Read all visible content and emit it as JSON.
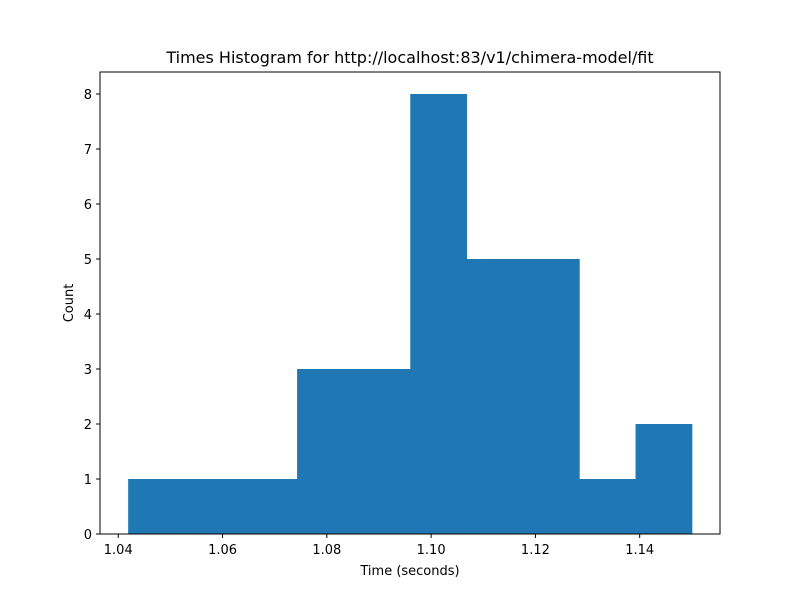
{
  "chart_data": {
    "type": "bar",
    "title": "Times Histogram for http://localhost:83/v1/chimera-model/fit",
    "xlabel": "Time (seconds)",
    "ylabel": "Count",
    "xlim": [
      1.0365,
      1.1554
    ],
    "ylim": [
      0,
      8.4
    ],
    "bar_color": "#1f77b4",
    "bins": [
      {
        "x0": 1.0419,
        "x1": 1.0527,
        "count": 1
      },
      {
        "x0": 1.0527,
        "x1": 1.0635,
        "count": 1
      },
      {
        "x0": 1.0635,
        "x1": 1.0743,
        "count": 1
      },
      {
        "x0": 1.0743,
        "x1": 1.0851,
        "count": 3
      },
      {
        "x0": 1.0851,
        "x1": 1.096,
        "count": 3
      },
      {
        "x0": 1.096,
        "x1": 1.1068,
        "count": 8
      },
      {
        "x0": 1.1068,
        "x1": 1.1176,
        "count": 5
      },
      {
        "x0": 1.1176,
        "x1": 1.1284,
        "count": 5
      },
      {
        "x0": 1.1284,
        "x1": 1.1392,
        "count": 1
      },
      {
        "x0": 1.1392,
        "x1": 1.15,
        "count": 2
      }
    ],
    "x_ticks": [
      {
        "value": 1.04,
        "label": "1.04"
      },
      {
        "value": 1.06,
        "label": "1.06"
      },
      {
        "value": 1.08,
        "label": "1.08"
      },
      {
        "value": 1.1,
        "label": "1.10"
      },
      {
        "value": 1.12,
        "label": "1.12"
      },
      {
        "value": 1.14,
        "label": "1.14"
      }
    ],
    "y_ticks": [
      {
        "value": 0,
        "label": "0"
      },
      {
        "value": 1,
        "label": "1"
      },
      {
        "value": 2,
        "label": "2"
      },
      {
        "value": 3,
        "label": "3"
      },
      {
        "value": 4,
        "label": "4"
      },
      {
        "value": 5,
        "label": "5"
      },
      {
        "value": 6,
        "label": "6"
      },
      {
        "value": 7,
        "label": "7"
      },
      {
        "value": 8,
        "label": "8"
      }
    ],
    "grid": false,
    "legend": "none"
  }
}
